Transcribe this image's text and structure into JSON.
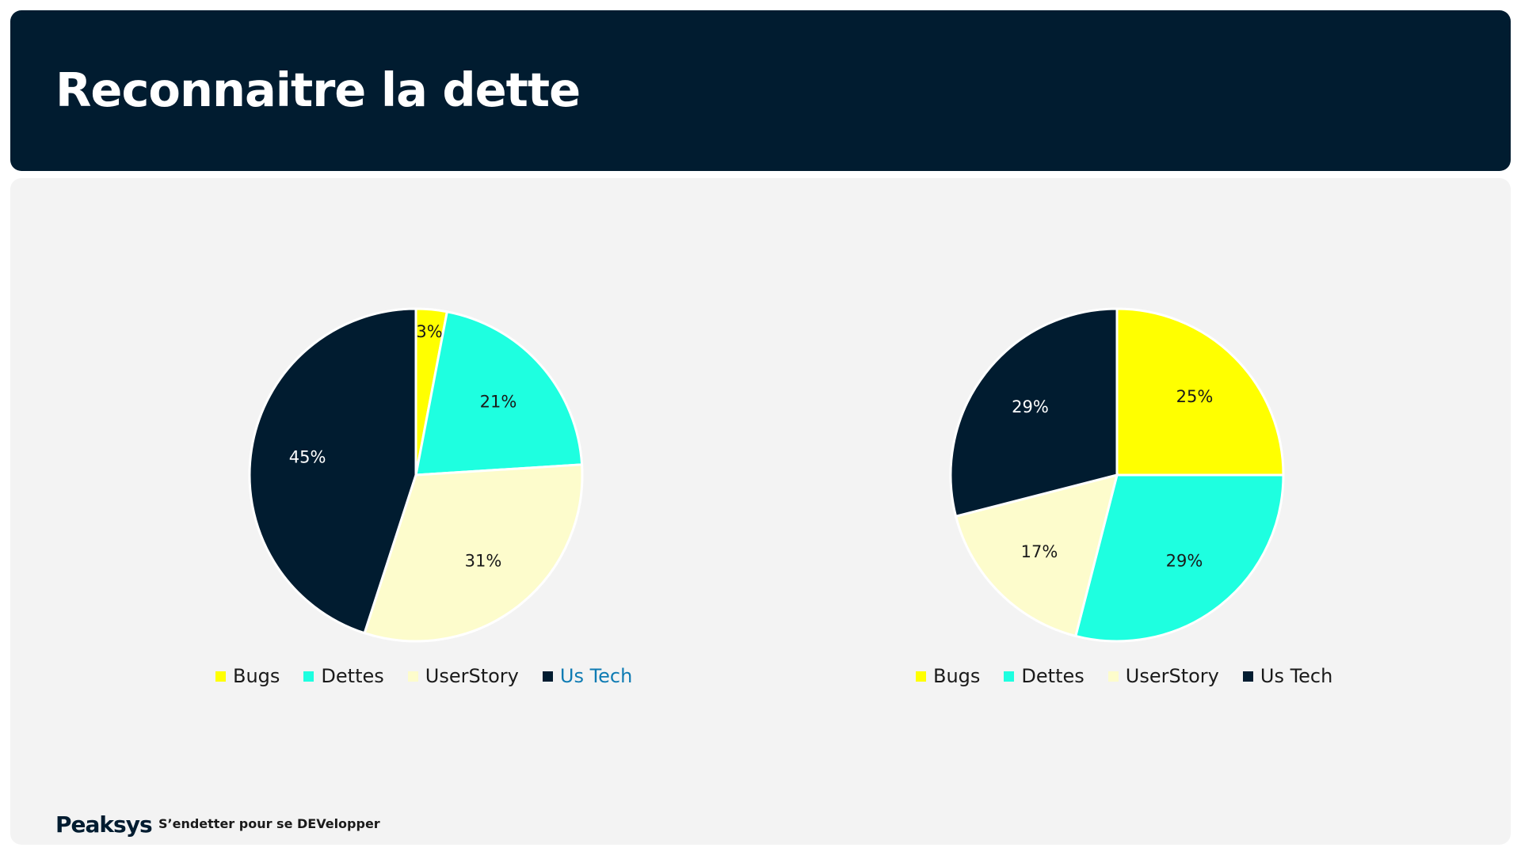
{
  "header": {
    "title": "Reconnaitre la dette"
  },
  "footer": {
    "logo": "Peaksys",
    "tagline": "S’endetter pour se DEVelopper"
  },
  "colors": {
    "header_bg": "#011c30",
    "panel_bg": "#f3f3f3",
    "bugs": "#ffff00",
    "dettes": "#1effe0",
    "userstory": "#fdfccc",
    "ustech": "#011c30",
    "ustech_legend_text": "#0e7bb3"
  },
  "chart_data": [
    {
      "type": "pie",
      "categories": [
        "Bugs",
        "Dettes",
        "UserStory",
        "Us Tech"
      ],
      "values": [
        3,
        21,
        31,
        45
      ],
      "labels": [
        "3%",
        "21%",
        "31%",
        "45%"
      ],
      "legend": [
        "Bugs",
        "Dettes",
        "UserStory",
        "Us Tech"
      ],
      "legend_position": "bottom"
    },
    {
      "type": "pie",
      "categories": [
        "Bugs",
        "Dettes",
        "UserStory",
        "Us Tech"
      ],
      "values": [
        25,
        29,
        17,
        29
      ],
      "labels": [
        "25%",
        "29%",
        "17%",
        "29%"
      ],
      "legend": [
        "Bugs",
        "Dettes",
        "UserStory",
        "Us Tech"
      ],
      "legend_position": "bottom"
    }
  ]
}
